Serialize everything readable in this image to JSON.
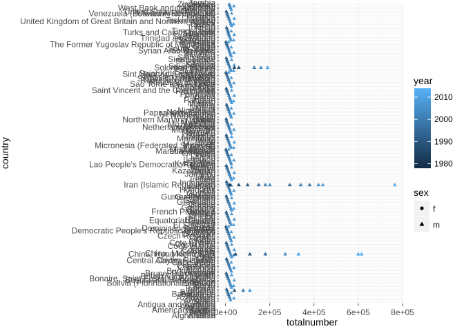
{
  "chart_data": {
    "type": "scatter",
    "title": "",
    "xlabel": "totalnumber",
    "ylabel": "country",
    "xlim": [
      -30000,
      800000
    ],
    "x_ticks": [
      0,
      200000,
      400000,
      600000,
      800000
    ],
    "x_tick_labels": [
      "0e+00",
      "2e+05",
      "4e+05",
      "6e+05",
      "8e+05"
    ],
    "y_type": "categorical",
    "y_labels_visible": [
      {
        "label": "Zimbabwe",
        "pos": 0.995
      },
      {
        "label": "West Bank and Gaza Strip",
        "pos": 0.982
      },
      {
        "label": "Venezuela (Bolivarian Republic of)",
        "pos": 0.963
      },
      {
        "label": "United Kingdom of Great Britain and Northern Ireland",
        "pos": 0.936
      },
      {
        "label": "Turks and Caicos Islands",
        "pos": 0.897
      },
      {
        "label": "Trinidad and Tobago",
        "pos": 0.877
      },
      {
        "label": "The Former Yugoslav Republic of Macedonia",
        "pos": 0.855
      },
      {
        "label": "Syrian Arab Republic",
        "pos": 0.834
      },
      {
        "label": "Solomon Islands",
        "pos": 0.775
      },
      {
        "label": "Sint Maarten (Dutch part)",
        "pos": 0.752
      },
      {
        "label": "Serbia & Montenegro",
        "pos": 0.737
      },
      {
        "label": "Sao Tome and Principe",
        "pos": 0.718
      },
      {
        "label": "Saint Vincent and the Grenadines",
        "pos": 0.696
      },
      {
        "label": "Papua New Guinea",
        "pos": 0.618
      },
      {
        "label": "Northern Mariana Islands",
        "pos": 0.594
      },
      {
        "label": "Netherlands Antilles",
        "pos": 0.568
      },
      {
        "label": "Micronesia (Federated States of)",
        "pos": 0.505
      },
      {
        "label": "Marshall Islands",
        "pos": 0.486
      },
      {
        "label": "Lao People's Democratic Republic",
        "pos": 0.439
      },
      {
        "label": "Kazakhstan",
        "pos": 0.418
      },
      {
        "label": "Iran (Islamic Republic of)",
        "pos": 0.368
      },
      {
        "label": "Guinea-Bissau",
        "pos": 0.327
      },
      {
        "label": "French Polynesia",
        "pos": 0.275
      },
      {
        "label": "Equatorial Guinea",
        "pos": 0.245
      },
      {
        "label": "Dominican Republic",
        "pos": 0.218
      },
      {
        "label": "Democratic People's Republic of Korea",
        "pos": 0.209
      },
      {
        "label": "China, Hong Kong SAR",
        "pos": 0.128
      },
      {
        "label": "Central African Republic",
        "pos": 0.106
      },
      {
        "label": "Brunei Darussalam",
        "pos": 0.061
      },
      {
        "label": "Bonaire, Saint Eustatius and Saba",
        "pos": 0.043
      },
      {
        "label": "Bolivia (Plurinational State of)",
        "pos": 0.027
      },
      {
        "label": "Bahamas",
        "pos": -0.011
      },
      {
        "label": "Antigua and Barbuda",
        "pos": -0.047
      },
      {
        "label": "American Samoa",
        "pos": -0.066
      },
      {
        "label": "Afghanistan",
        "pos": -0.085
      }
    ],
    "clutter_labels": [
      "Zambia",
      "Yemen",
      "Viet Nam",
      "Uruguay",
      "Uzbekistan",
      "United States of America",
      "United Arab Emirates",
      "Ukraine",
      "Uganda",
      "Tuvalu",
      "Turkmenistan",
      "Turkey",
      "Tunisia",
      "Tonga",
      "Tokelau",
      "Togo",
      "Timor-Leste",
      "Thailand",
      "Tajikistan",
      "Switzerland",
      "Sweden",
      "Swaziland",
      "Suriname",
      "Sudan",
      "Sri Lanka",
      "Spain",
      "South Sudan",
      "South Africa",
      "Somalia",
      "Slovenia",
      "Slovakia",
      "Singapore",
      "Sierra Leone",
      "Seychelles",
      "Serbia",
      "Senegal",
      "Saudi Arabia",
      "San Marino",
      "Samoa",
      "Saint Lucia",
      "Saint Kitts and Nevis",
      "Rwanda",
      "Russian Federation",
      "Romania",
      "Republic of Moldova",
      "Republic of Korea",
      "Qatar",
      "Puerto Rico",
      "Portugal",
      "Poland",
      "Philippines",
      "Peru",
      "Paraguay",
      "Panama",
      "Palau",
      "Pakistan",
      "Oman",
      "Norway",
      "Niue",
      "Nigeria",
      "Niger",
      "Nicaragua",
      "New Zealand",
      "New Caledonia",
      "Netherlands",
      "Nepal",
      "Nauru",
      "Namibia",
      "Myanmar",
      "Mozambique",
      "Morocco",
      "Montserrat",
      "Montenegro",
      "Mongolia",
      "Monaco",
      "Mexico",
      "Mauritius",
      "Mauritania",
      "Malta",
      "Mali",
      "Maldives",
      "Malaysia",
      "Malawi",
      "Madagascar",
      "Luxembourg",
      "Lithuania",
      "Libya",
      "Liberia",
      "Lesotho",
      "Lebanon",
      "Latvia",
      "Kyrgyzstan",
      "Kuwait",
      "Kiribati",
      "Kenya",
      "Jordan",
      "Japan",
      "Jamaica",
      "Italy",
      "Israel",
      "Ireland",
      "Iraq",
      "Indonesia",
      "India",
      "Iceland",
      "Hungary",
      "Honduras",
      "Haiti",
      "Guyana",
      "Guinea",
      "Guatemala",
      "Guam",
      "Grenada",
      "Greenland",
      "Greece",
      "Ghana",
      "Germany",
      "Georgia",
      "Gambia",
      "Gabon",
      "France",
      "Finland",
      "Fiji",
      "Ethiopia",
      "Estonia",
      "Eritrea",
      "El Salvador",
      "Egypt",
      "Ecuador",
      "Dominica",
      "Djibouti",
      "Denmark",
      "Czech Republic",
      "Cyprus",
      "Cuba",
      "Croatia",
      "Cote d'Ivoire",
      "Costa Rica",
      "Cook Islands",
      "Congo",
      "Comoros",
      "Colombia",
      "China, Macao SAR",
      "China",
      "Chile",
      "Chad",
      "Cayman Islands",
      "Cape Verde",
      "Canada",
      "Cameroon",
      "Cambodia",
      "Burundi",
      "Burkina Faso",
      "Bulgaria",
      "Brazil",
      "British Virgin Islands",
      "Botswana",
      "Bosnia and Herzegovina",
      "Bhutan",
      "Bermuda",
      "Benin",
      "Belize",
      "Belgium",
      "Belarus",
      "Barbados",
      "Bangladesh",
      "Bahrain",
      "Azerbaijan",
      "Austria",
      "Australia",
      "Aruba",
      "Armenia",
      "Argentina",
      "Anguilla",
      "Angola",
      "Andorra",
      "Algeria",
      "Albania"
    ],
    "series_description": "",
    "scatter_points": [
      {
        "y": 0.368,
        "x": 20000,
        "year": 1980,
        "sex": "m"
      },
      {
        "y": 0.368,
        "x": 60000,
        "year": 1985,
        "sex": "m"
      },
      {
        "y": 0.368,
        "x": 100000,
        "year": 1990,
        "sex": "m"
      },
      {
        "y": 0.368,
        "x": 150000,
        "year": 1995,
        "sex": "m"
      },
      {
        "y": 0.368,
        "x": 180000,
        "year": 2000,
        "sex": "m"
      },
      {
        "y": 0.368,
        "x": 200000,
        "year": 2005,
        "sex": "m"
      },
      {
        "y": 0.368,
        "x": 290000,
        "year": 1995,
        "sex": "m"
      },
      {
        "y": 0.368,
        "x": 340000,
        "year": 2000,
        "sex": "m"
      },
      {
        "y": 0.368,
        "x": 380000,
        "year": 1998,
        "sex": "m"
      },
      {
        "y": 0.368,
        "x": 420000,
        "year": 2005,
        "sex": "m"
      },
      {
        "y": 0.368,
        "x": 440000,
        "year": 2010,
        "sex": "m"
      },
      {
        "y": 0.368,
        "x": 765000,
        "year": 2012,
        "sex": "m"
      },
      {
        "y": 0.128,
        "x": 45000,
        "year": 1985,
        "sex": "m"
      },
      {
        "y": 0.128,
        "x": 110000,
        "year": 1990,
        "sex": "m"
      },
      {
        "y": 0.128,
        "x": 180000,
        "year": 1995,
        "sex": "m"
      },
      {
        "y": 0.128,
        "x": 270000,
        "year": 2005,
        "sex": "m"
      },
      {
        "y": 0.128,
        "x": 330000,
        "year": 2010,
        "sex": "m"
      },
      {
        "y": 0.128,
        "x": 600000,
        "year": 2012,
        "sex": "m"
      },
      {
        "y": 0.128,
        "x": 615000,
        "year": 2013,
        "sex": "m"
      },
      {
        "y": 0.775,
        "x": 40000,
        "year": 1985,
        "sex": "m"
      },
      {
        "y": 0.775,
        "x": 60000,
        "year": 1990,
        "sex": "m"
      },
      {
        "y": 0.775,
        "x": 130000,
        "year": 2000,
        "sex": "m"
      },
      {
        "y": 0.775,
        "x": 160000,
        "year": 2005,
        "sex": "m"
      },
      {
        "y": 0.775,
        "x": 190000,
        "year": 2010,
        "sex": "m"
      },
      {
        "y": 0.002,
        "x": 40000,
        "year": 1990,
        "sex": "m"
      },
      {
        "y": 0.002,
        "x": 80000,
        "year": 2000,
        "sex": "m"
      },
      {
        "y": 0.002,
        "x": 110000,
        "year": 2008,
        "sex": "m"
      }
    ],
    "color_scale": {
      "title": "year",
      "min": 1978,
      "max": 2014,
      "ticks": [
        1980,
        1990,
        2000,
        2010
      ],
      "low_color": "#132B43",
      "high_color": "#56B1F7"
    },
    "shape_legend": {
      "title": "sex",
      "entries": [
        {
          "label": "f",
          "shape": "circle"
        },
        {
          "label": "m",
          "shape": "triangle"
        }
      ]
    },
    "grid": true,
    "legend_position": "right"
  }
}
